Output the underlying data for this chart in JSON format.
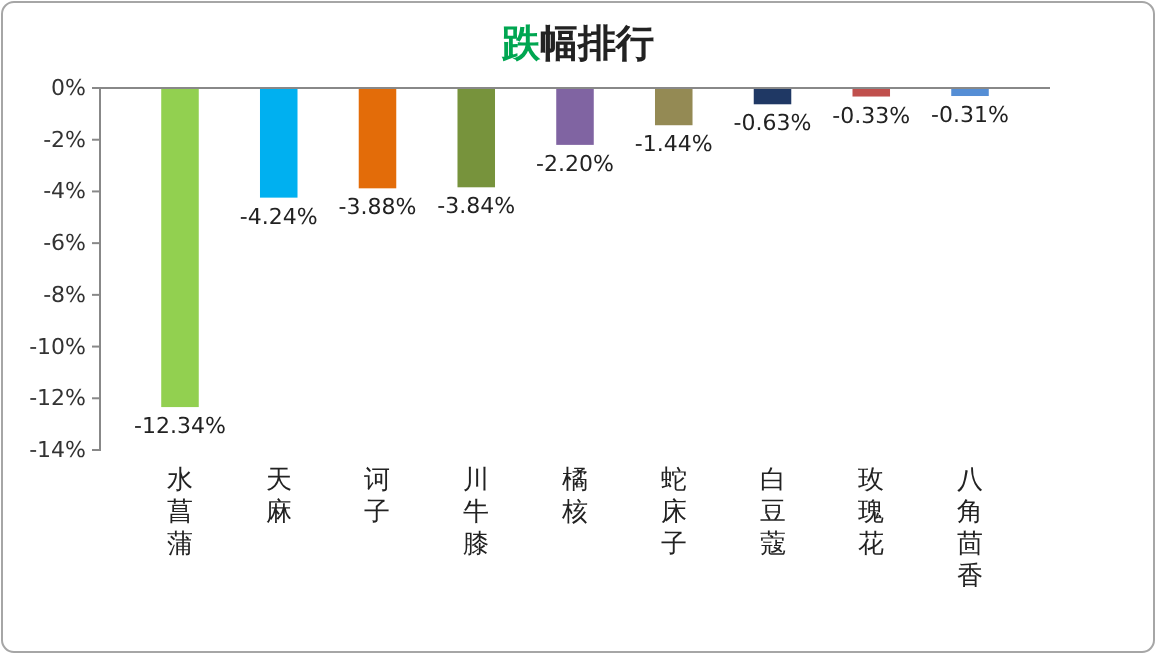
{
  "chart_data": {
    "type": "bar",
    "title": "跌幅排行",
    "categories": [
      "水菖蒲",
      "天麻",
      "诃子",
      "川牛膝",
      "橘核",
      "蛇床子",
      "白豆蔻",
      "玫瑰花",
      "八角茴香"
    ],
    "values": [
      -12.34,
      -4.24,
      -3.88,
      -3.84,
      -2.2,
      -1.44,
      -0.63,
      -0.33,
      -0.31
    ],
    "colors": [
      "#92d050",
      "#00b0f0",
      "#e36c09",
      "#77933c",
      "#8064a2",
      "#948a54",
      "#1f3864",
      "#c0504d",
      "#558ed5"
    ],
    "value_labels": [
      "-12.34%",
      "-4.24%",
      "-3.88%",
      "-3.84%",
      "-2.20%",
      "-1.44%",
      "-0.63%",
      "-0.33%",
      "-0.31%"
    ],
    "ylim": [
      -14,
      0
    ],
    "yticks": [
      {
        "value": 0,
        "label": "0%"
      },
      {
        "value": -2,
        "label": "-2%"
      },
      {
        "value": -4,
        "label": "-4%"
      },
      {
        "value": -6,
        "label": "-6%"
      },
      {
        "value": -8,
        "label": "-8%"
      },
      {
        "value": -10,
        "label": "-10%"
      },
      {
        "value": -12,
        "label": "-12%"
      },
      {
        "value": -14,
        "label": "-14%"
      }
    ],
    "grid": false
  }
}
